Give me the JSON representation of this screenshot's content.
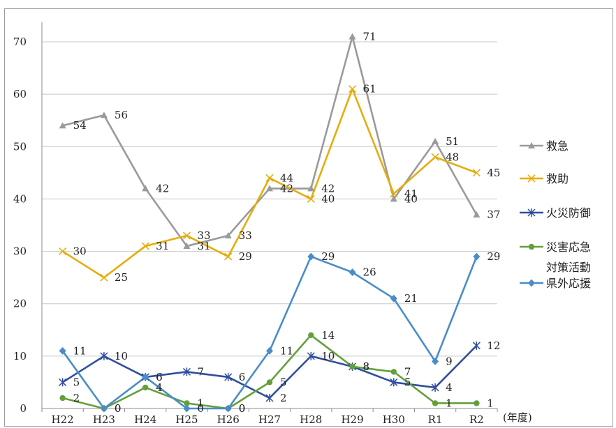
{
  "chart_data": {
    "type": "line",
    "title": "",
    "xlabel": "(年度)",
    "ylabel": "",
    "ylim": [
      0,
      70
    ],
    "yticks": [
      0,
      10,
      20,
      30,
      40,
      50,
      60,
      70
    ],
    "grid": true,
    "legend_position": "right",
    "categories": [
      "H22",
      "H23",
      "H24",
      "H25",
      "H26",
      "H27",
      "H28",
      "H29",
      "H30",
      "R1",
      "R2"
    ],
    "series": [
      {
        "name": "救急",
        "color": "#9a9a9a",
        "marker": "triangle",
        "values": [
          54,
          56,
          42,
          31,
          33,
          42,
          42,
          71,
          40,
          51,
          37
        ]
      },
      {
        "name": "救助",
        "color": "#e5ad0c",
        "marker": "x",
        "values": [
          30,
          25,
          31,
          33,
          29,
          44,
          40,
          61,
          41,
          48,
          45
        ]
      },
      {
        "name": "火災防御",
        "color": "#2f4f9e",
        "marker": "asterisk",
        "values": [
          5,
          10,
          6,
          7,
          6,
          2,
          10,
          8,
          5,
          4,
          12
        ]
      },
      {
        "name": "災害応急対策活動",
        "name_lines": [
          "災害応急",
          "対策活動"
        ],
        "color": "#62a03a",
        "marker": "circle",
        "values": [
          2,
          0,
          4,
          1,
          0,
          5,
          14,
          8,
          7,
          1,
          1
        ]
      },
      {
        "name": "県外応援",
        "color": "#4a8cc8",
        "marker": "diamond",
        "values": [
          11,
          0,
          6,
          0,
          0,
          11,
          29,
          26,
          21,
          9,
          29
        ]
      }
    ]
  }
}
